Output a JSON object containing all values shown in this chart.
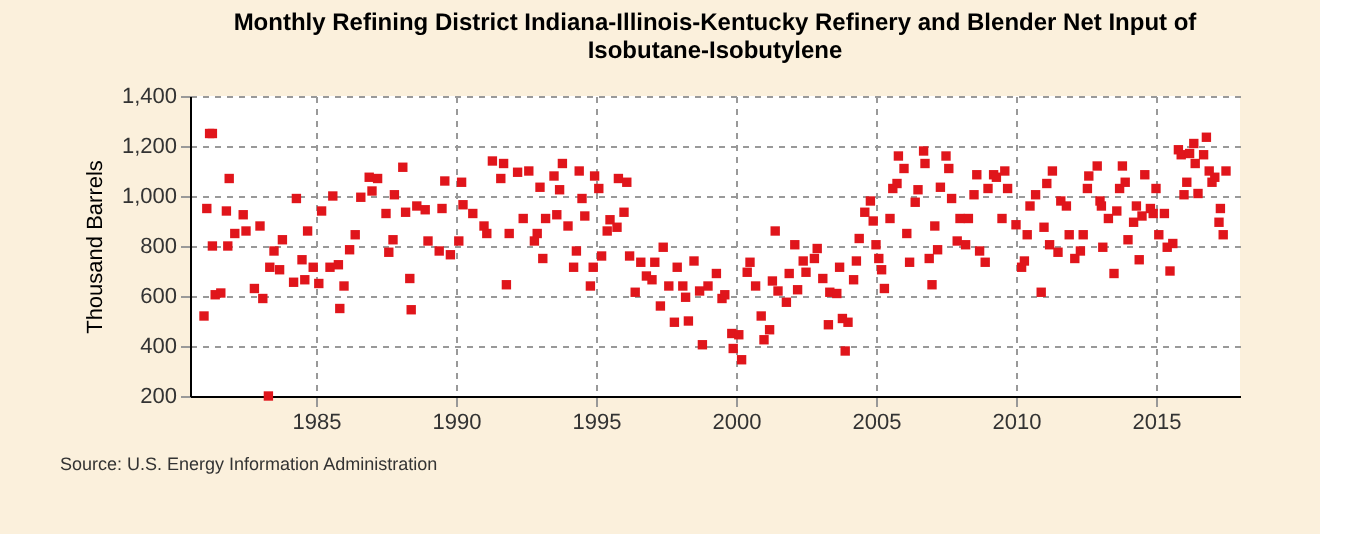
{
  "chart_data": {
    "type": "scatter",
    "title": "Monthly Refining District Indiana-Illinois-Kentucky Refinery and Blender Net Input of Isobutane-Isobutylene",
    "ylabel": "Thousand Barrels",
    "annotations": [
      "Source: U.S. Energy Information Administration"
    ],
    "xlim": [
      1980.5,
      2018.0
    ],
    "xticks": [
      1985,
      1990,
      1995,
      2000,
      2005,
      2010,
      2015
    ],
    "ylim": [
      200,
      1400
    ],
    "yticks": [
      200,
      400,
      600,
      800,
      {
        "value": 1000,
        "label": "1,000"
      },
      {
        "value": 1200,
        "label": "1,200"
      },
      {
        "value": 1400,
        "label": "1,400"
      }
    ],
    "grid": true,
    "marker": "square",
    "series": [
      {
        "color": "#e0151b",
        "x": [
          1981.2,
          1981.3,
          1981.0,
          1981.1,
          1981.3,
          1981.4,
          1981.6,
          1981.9,
          1981.8,
          1981.85,
          1982.1,
          1982.4,
          1982.5,
          1982.8,
          1983.0,
          1983.1,
          1983.3,
          1983.35,
          1983.5,
          1983.7,
          1983.8,
          1984.2,
          1984.3,
          1984.5,
          1984.6,
          1984.7,
          1984.9,
          1985.1,
          1985.2,
          1985.6,
          1985.5,
          1985.8,
          1985.85,
          1986.0,
          1986.2,
          1986.4,
          1986.6,
          1986.9,
          1987.0,
          1987.2,
          1987.5,
          1987.6,
          1987.75,
          1987.8,
          1988.1,
          1988.2,
          1988.35,
          1988.4,
          1988.6,
          1988.9,
          1989.0,
          1989.4,
          1989.5,
          1989.6,
          1989.8,
          1990.1,
          1990.2,
          1990.25,
          1990.6,
          1991.0,
          1991.1,
          1991.3,
          1991.6,
          1991.7,
          1991.8,
          1991.9,
          1992.2,
          1992.4,
          1992.6,
          1992.8,
          1992.9,
          1993.0,
          1993.1,
          1993.2,
          1993.5,
          1993.6,
          1993.7,
          1993.8,
          1994.0,
          1994.2,
          1994.3,
          1994.4,
          1994.5,
          1994.6,
          1994.8,
          1994.9,
          1994.95,
          1995.1,
          1995.2,
          1995.4,
          1995.5,
          1995.75,
          1995.8,
          1996.0,
          1996.1,
          1996.2,
          1996.4,
          1996.6,
          1996.8,
          1997.0,
          1997.1,
          1997.3,
          1997.4,
          1997.6,
          1997.8,
          1997.9,
          1998.1,
          1998.2,
          1998.3,
          1998.5,
          1998.7,
          1998.8,
          1999.0,
          1999.3,
          1999.5,
          1999.6,
          1999.85,
          1999.9,
          2000.1,
          2000.2,
          2000.4,
          2000.5,
          2000.7,
          2000.9,
          2001.0,
          2001.2,
          2001.3,
          2001.4,
          2001.5,
          2001.8,
          2001.9,
          2002.1,
          2002.2,
          2002.4,
          2002.5,
          2002.8,
          2002.9,
          2003.1,
          2003.3,
          2003.35,
          2003.6,
          2003.7,
          2003.8,
          2003.9,
          2004.0,
          2004.2,
          2004.3,
          2004.4,
          2004.6,
          2004.8,
          2004.9,
          2005.0,
          2005.1,
          2005.2,
          2005.3,
          2005.5,
          2005.6,
          2005.75,
          2005.8,
          2006.0,
          2006.1,
          2006.2,
          2006.4,
          2006.5,
          2006.7,
          2006.75,
          2006.9,
          2007.0,
          2007.1,
          2007.2,
          2007.3,
          2007.5,
          2007.6,
          2007.7,
          2007.9,
          2008.0,
          2008.2,
          2008.3,
          2008.5,
          2008.6,
          2008.7,
          2008.9,
          2009.0,
          2009.2,
          2009.3,
          2009.5,
          2009.6,
          2009.7,
          2010.0,
          2010.2,
          2010.3,
          2010.4,
          2010.5,
          2010.7,
          2010.9,
          2011.0,
          2011.1,
          2011.2,
          2011.3,
          2011.5,
          2011.6,
          2011.8,
          2011.9,
          2012.1,
          2012.3,
          2012.4,
          2012.55,
          2012.6,
          2012.9,
          2013.0,
          2013.05,
          2013.1,
          2013.3,
          2013.5,
          2013.6,
          2013.7,
          2013.8,
          2013.9,
          2014.0,
          2014.2,
          2014.3,
          2014.4,
          2014.5,
          2014.6,
          2014.8,
          2014.9,
          2015.0,
          2015.1,
          2015.3,
          2015.4,
          2015.5,
          2015.6,
          2015.8,
          2015.9,
          2016.0,
          2016.1,
          2016.2,
          2016.35,
          2016.4,
          2016.5,
          2016.7,
          2016.8,
          2016.9,
          2017.0,
          2017.1,
          2017.25,
          2017.3,
          2017.4,
          2017.5
        ],
        "values": [
          1250,
          1250,
          520,
          950,
          800,
          605,
          612,
          1070,
          940,
          800,
          850,
          925,
          860,
          630,
          880,
          590,
          200,
          715,
          780,
          705,
          825,
          655,
          990,
          745,
          665,
          860,
          715,
          650,
          940,
          1000,
          715,
          725,
          550,
          640,
          785,
          845,
          995,
          1075,
          1020,
          1070,
          930,
          775,
          825,
          1005,
          1115,
          935,
          670,
          545,
          960,
          945,
          820,
          780,
          950,
          1060,
          765,
          820,
          1055,
          965,
          930,
          880,
          850,
          1140,
          1070,
          1130,
          645,
          850,
          1095,
          910,
          1100,
          820,
          850,
          1035,
          750,
          910,
          1080,
          925,
          1025,
          1130,
          880,
          715,
          780,
          1100,
          990,
          920,
          640,
          715,
          1080,
          1030,
          760,
          860,
          905,
          875,
          1070,
          935,
          1055,
          760,
          615,
          735,
          680,
          665,
          735,
          560,
          795,
          640,
          495,
          715,
          640,
          595,
          500,
          740,
          620,
          405,
          640,
          690,
          590,
          605,
          450,
          390,
          445,
          345,
          695,
          735,
          640,
          520,
          425,
          465,
          660,
          860,
          620,
          575,
          690,
          805,
          625,
          740,
          695,
          750,
          790,
          670,
          485,
          615,
          610,
          715,
          510,
          380,
          495,
          665,
          740,
          830,
          935,
          980,
          900,
          805,
          750,
          705,
          630,
          910,
          1030,
          1050,
          1160,
          1110,
          850,
          735,
          975,
          1025,
          1180,
          1130,
          750,
          645,
          880,
          785,
          1035,
          1160,
          1110,
          990,
          820,
          910,
          805,
          910,
          1005,
          1085,
          780,
          735,
          1030,
          1085,
          1075,
          910,
          1100,
          1030,
          885,
          715,
          740,
          845,
          960,
          1005,
          615,
          875,
          1050,
          805,
          1100,
          775,
          980,
          960,
          845,
          750,
          780,
          845,
          1030,
          1080,
          1120,
          980,
          960,
          795,
          910,
          690,
          940,
          1030,
          1120,
          1055,
          825,
          895,
          960,
          745,
          920,
          1085,
          950,
          930,
          1030,
          845,
          930,
          795,
          700,
          810,
          1185,
          1165,
          1005,
          1055,
          1170,
          1210,
          1130,
          1010,
          1165,
          1235,
          1100,
          1055,
          1075,
          895,
          950,
          845,
          1100
        ]
      }
    ]
  }
}
